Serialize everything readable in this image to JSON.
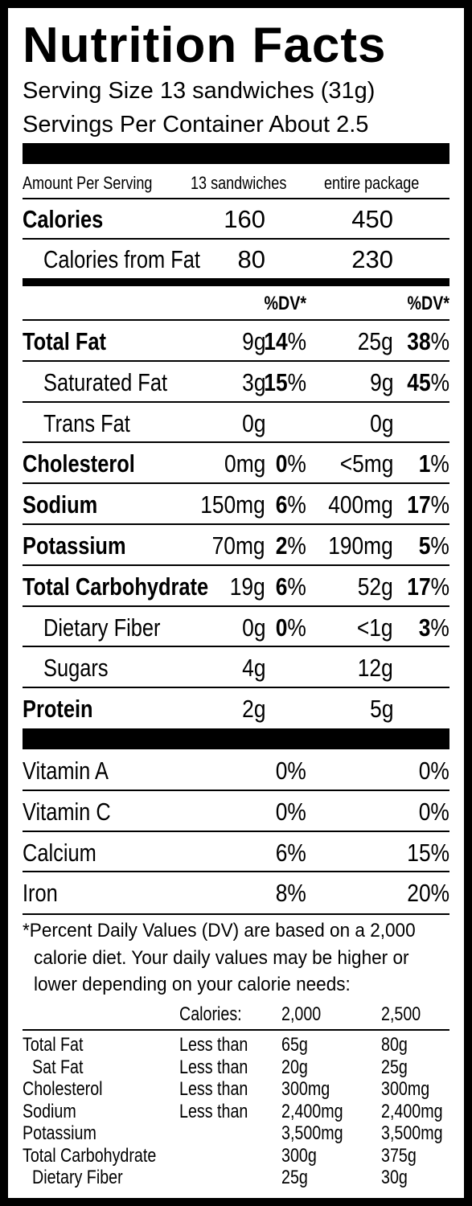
{
  "title": "Nutrition Facts",
  "serving_size": "Serving Size 13 sandwiches (31g)",
  "servings_per_container": "Servings Per Container About 2.5",
  "header": {
    "amount_per_serving": "Amount Per Serving",
    "col_a": "13 sandwiches",
    "col_b": "entire package",
    "dv_a": "%DV*",
    "dv_b": "%DV*"
  },
  "calories": {
    "label": "Calories",
    "a": "160",
    "b": "450"
  },
  "calories_fat": {
    "label": "Calories from Fat",
    "a": "80",
    "b": "230"
  },
  "nutrients": [
    {
      "label": "Total Fat",
      "a": "9g",
      "dv_a": "14",
      "b": "25g",
      "dv_b": "38"
    },
    {
      "label": "Saturated Fat",
      "a": "3g",
      "dv_a": "15",
      "b": "9g",
      "dv_b": "45"
    },
    {
      "label": "Trans Fat",
      "a": "0g",
      "dv_a": "",
      "b": "0g",
      "dv_b": ""
    },
    {
      "label": "Cholesterol",
      "a": "0mg",
      "dv_a": "0",
      "b": "<5mg",
      "dv_b": "1"
    },
    {
      "label": "Sodium",
      "a": "150mg",
      "dv_a": "6",
      "b": "400mg",
      "dv_b": "17"
    },
    {
      "label": "Potassium",
      "a": "70mg",
      "dv_a": "2",
      "b": "190mg",
      "dv_b": "5"
    },
    {
      "label": "Total Carbohydrate",
      "a": "19g",
      "dv_a": "6",
      "b": "52g",
      "dv_b": "17"
    },
    {
      "label": "Dietary Fiber",
      "a": "0g",
      "dv_a": "0",
      "b": "<1g",
      "dv_b": "3"
    },
    {
      "label": "Sugars",
      "a": "4g",
      "dv_a": "",
      "b": "12g",
      "dv_b": ""
    },
    {
      "label": "Protein",
      "a": "2g",
      "dv_a": "",
      "b": "5g",
      "dv_b": ""
    }
  ],
  "vitamins": [
    {
      "label": "Vitamin A",
      "a": "0%",
      "b": "0%"
    },
    {
      "label": "Vitamin C",
      "a": "0%",
      "b": "0%"
    },
    {
      "label": "Calcium",
      "a": "6%",
      "b": "15%"
    },
    {
      "label": "Iron",
      "a": "8%",
      "b": "20%"
    }
  ],
  "percent_symbol": "%",
  "footnote": [
    "*Percent Daily Values (DV) are based on a 2,000",
    "calorie diet. Your daily values may be higher or",
    "lower depending on your calorie needs:"
  ],
  "dv_table": {
    "calories_label": "Calories:",
    "col_2000": "2,000",
    "col_2500": "2,500",
    "rows": [
      {
        "label": "Total Fat",
        "qual": "Less than",
        "v1": "65g",
        "v2": "80g"
      },
      {
        "label": "Sat Fat",
        "qual": "Less than",
        "v1": "20g",
        "v2": "25g"
      },
      {
        "label": "Cholesterol",
        "qual": "Less than",
        "v1": "300mg",
        "v2": "300mg"
      },
      {
        "label": "Sodium",
        "qual": "Less than",
        "v1": "2,400mg",
        "v2": "2,400mg"
      },
      {
        "label": "Potassium",
        "qual": "",
        "v1": "3,500mg",
        "v2": "3,500mg"
      },
      {
        "label": "Total Carbohydrate",
        "qual": "",
        "v1": "300g",
        "v2": "375g"
      },
      {
        "label": "Dietary Fiber",
        "qual": "",
        "v1": "25g",
        "v2": "30g"
      }
    ]
  }
}
